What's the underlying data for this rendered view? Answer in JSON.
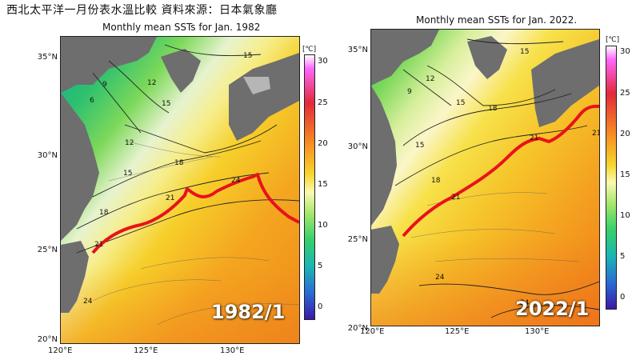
{
  "banner": "西北太平洋一月份表水溫比較 資料來源：日本氣象廳",
  "unit": "[℃]",
  "colorbar_ticks": [
    "30",
    "25",
    "20",
    "15",
    "10",
    "5",
    "0"
  ],
  "left": {
    "title": "Monthly mean SSTs for Jan. 1982",
    "stamp": "1982/1",
    "lat_labels": [
      "35°N",
      "30°N",
      "25°N",
      "20°N"
    ],
    "lon_labels": [
      "120°E",
      "125°E",
      "130°E"
    ],
    "contour_labels": [
      "15",
      "9",
      "12",
      "6",
      "15",
      "12",
      "18",
      "15",
      "24",
      "21",
      "18",
      "21",
      "24"
    ]
  },
  "right": {
    "title": "Monthly mean SSTs for Jan. 2022.",
    "stamp": "2022/1",
    "lat_labels": [
      "35°N",
      "30°N",
      "25°N",
      "20°N"
    ],
    "lon_labels": [
      "120°E",
      "125°E",
      "130°E"
    ],
    "contour_labels": [
      "15",
      "12",
      "9",
      "15",
      "18",
      "21",
      "15",
      "18",
      "21",
      "24",
      "24",
      "21"
    ]
  },
  "colors": {
    "kuroshio_line": "#e8121b",
    "land": "#6e6e6e"
  }
}
